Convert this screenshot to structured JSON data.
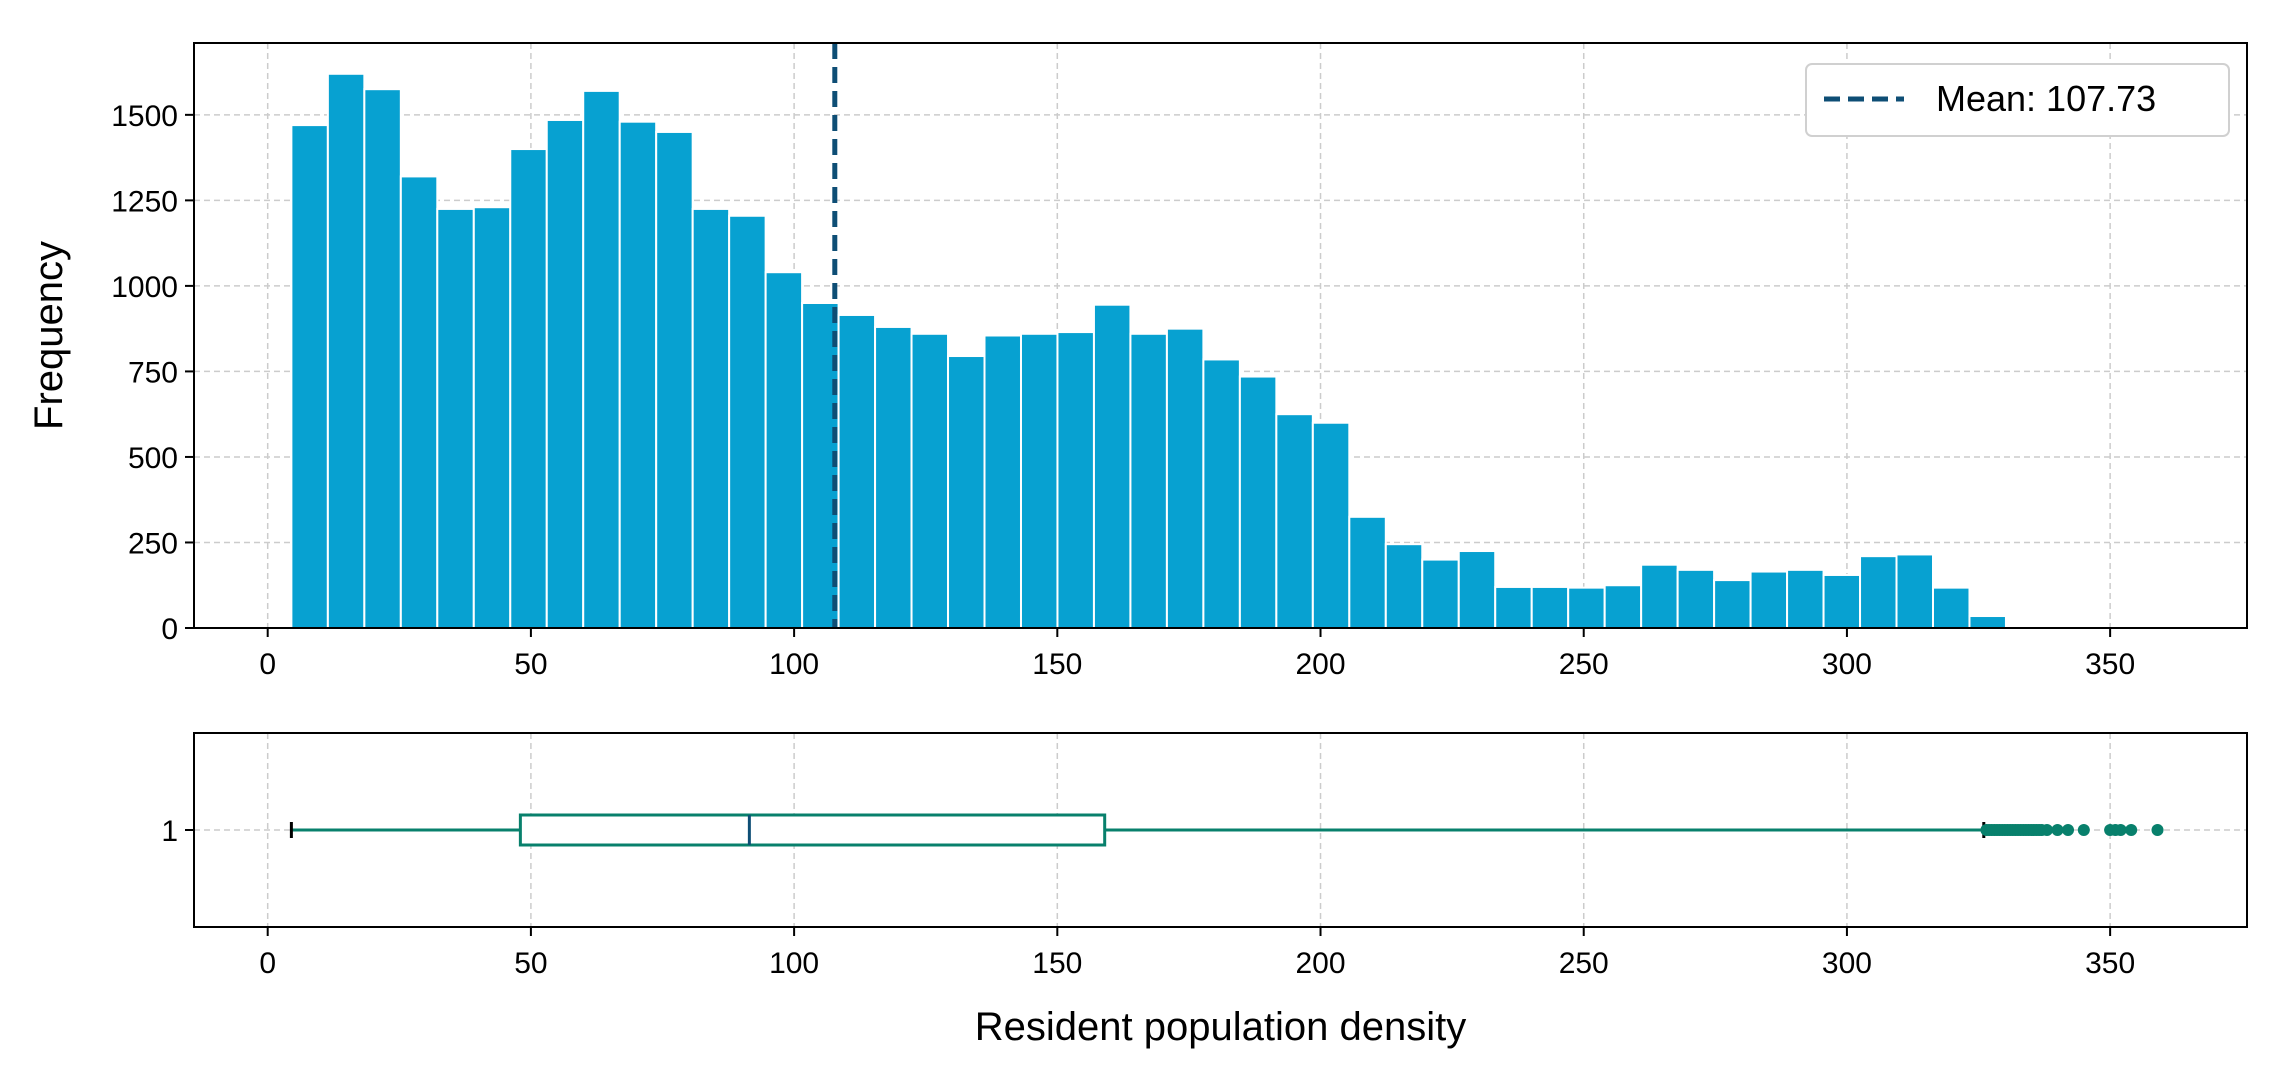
{
  "chart_data": [
    {
      "type": "bar",
      "subtype": "histogram",
      "title": "",
      "xlabel": "",
      "ylabel": "Frequency",
      "xlim": [
        -14,
        376
      ],
      "ylim": [
        0,
        1710
      ],
      "x_ticks": [
        0,
        50,
        100,
        150,
        200,
        250,
        300,
        350
      ],
      "y_ticks": [
        0,
        250,
        500,
        750,
        1000,
        1250,
        1500
      ],
      "grid": true,
      "bin_start": 4.5,
      "bin_width": 6.93,
      "values": [
        1470,
        1620,
        1575,
        1320,
        1225,
        1230,
        1400,
        1485,
        1570,
        1480,
        1450,
        1225,
        1205,
        1040,
        950,
        915,
        880,
        860,
        795,
        855,
        860,
        865,
        945,
        860,
        875,
        785,
        735,
        625,
        600,
        325,
        245,
        200,
        225,
        120,
        120,
        118,
        125,
        185,
        170,
        140,
        165,
        170,
        155,
        210,
        215,
        118,
        35
      ],
      "bar_color": "#07a1d1",
      "mean": 107.73,
      "mean_color": "#0e4e75",
      "legend": {
        "label": "Mean: 107.73",
        "position": "top-right"
      }
    },
    {
      "type": "boxplot",
      "xlabel": "Resident population density",
      "ylabel": "",
      "xlim": [
        -14,
        376
      ],
      "x_ticks": [
        0,
        50,
        100,
        150,
        200,
        250,
        300,
        350
      ],
      "y_ticks": [
        1
      ],
      "grid": true,
      "box": {
        "whisker_low": 4.5,
        "q1": 48,
        "median": 91.5,
        "q3": 159,
        "whisker_high": 326
      },
      "outliers": [
        326.5,
        327,
        327.5,
        328,
        328.5,
        329,
        329.5,
        330,
        330.5,
        331,
        331.5,
        332,
        332.5,
        333,
        333.5,
        334,
        334.5,
        335,
        335.5,
        336,
        336.5,
        337,
        338,
        340,
        342,
        345,
        350,
        351,
        352,
        354,
        359
      ],
      "box_color": "#08806c",
      "median_color": "#0e4e75"
    }
  ],
  "colors": {
    "grid": "#cccccc",
    "axis": "#000000"
  }
}
